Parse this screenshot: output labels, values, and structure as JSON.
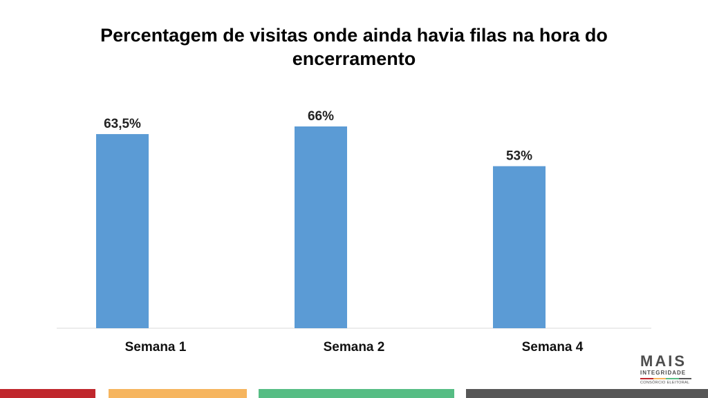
{
  "title_lines": [
    "Percentagem de visitas onde ainda havia filas na hora do",
    "encerramento"
  ],
  "chart_data": {
    "type": "bar",
    "title": "Percentagem de visitas onde ainda havia filas na hora do encerramento",
    "categories": [
      "Semana 1",
      "Semana 2",
      "Semana 4"
    ],
    "values": [
      63.5,
      66,
      53
    ],
    "data_labels": [
      "63,5%",
      "66%",
      "53%"
    ],
    "xlabel": "",
    "ylabel": "",
    "ylim": [
      0,
      66
    ],
    "grid": false,
    "legend": "none"
  },
  "logo": {
    "main": "MAIS",
    "sub": "INTEGRIDADE",
    "tag": "CONSÓRCIO ELEITORAL"
  },
  "colors": {
    "bar": "#5b9bd5",
    "stripe_red": "#c0272d",
    "stripe_orange": "#f6b55e",
    "stripe_green": "#56bd84",
    "stripe_gray": "#575757"
  }
}
